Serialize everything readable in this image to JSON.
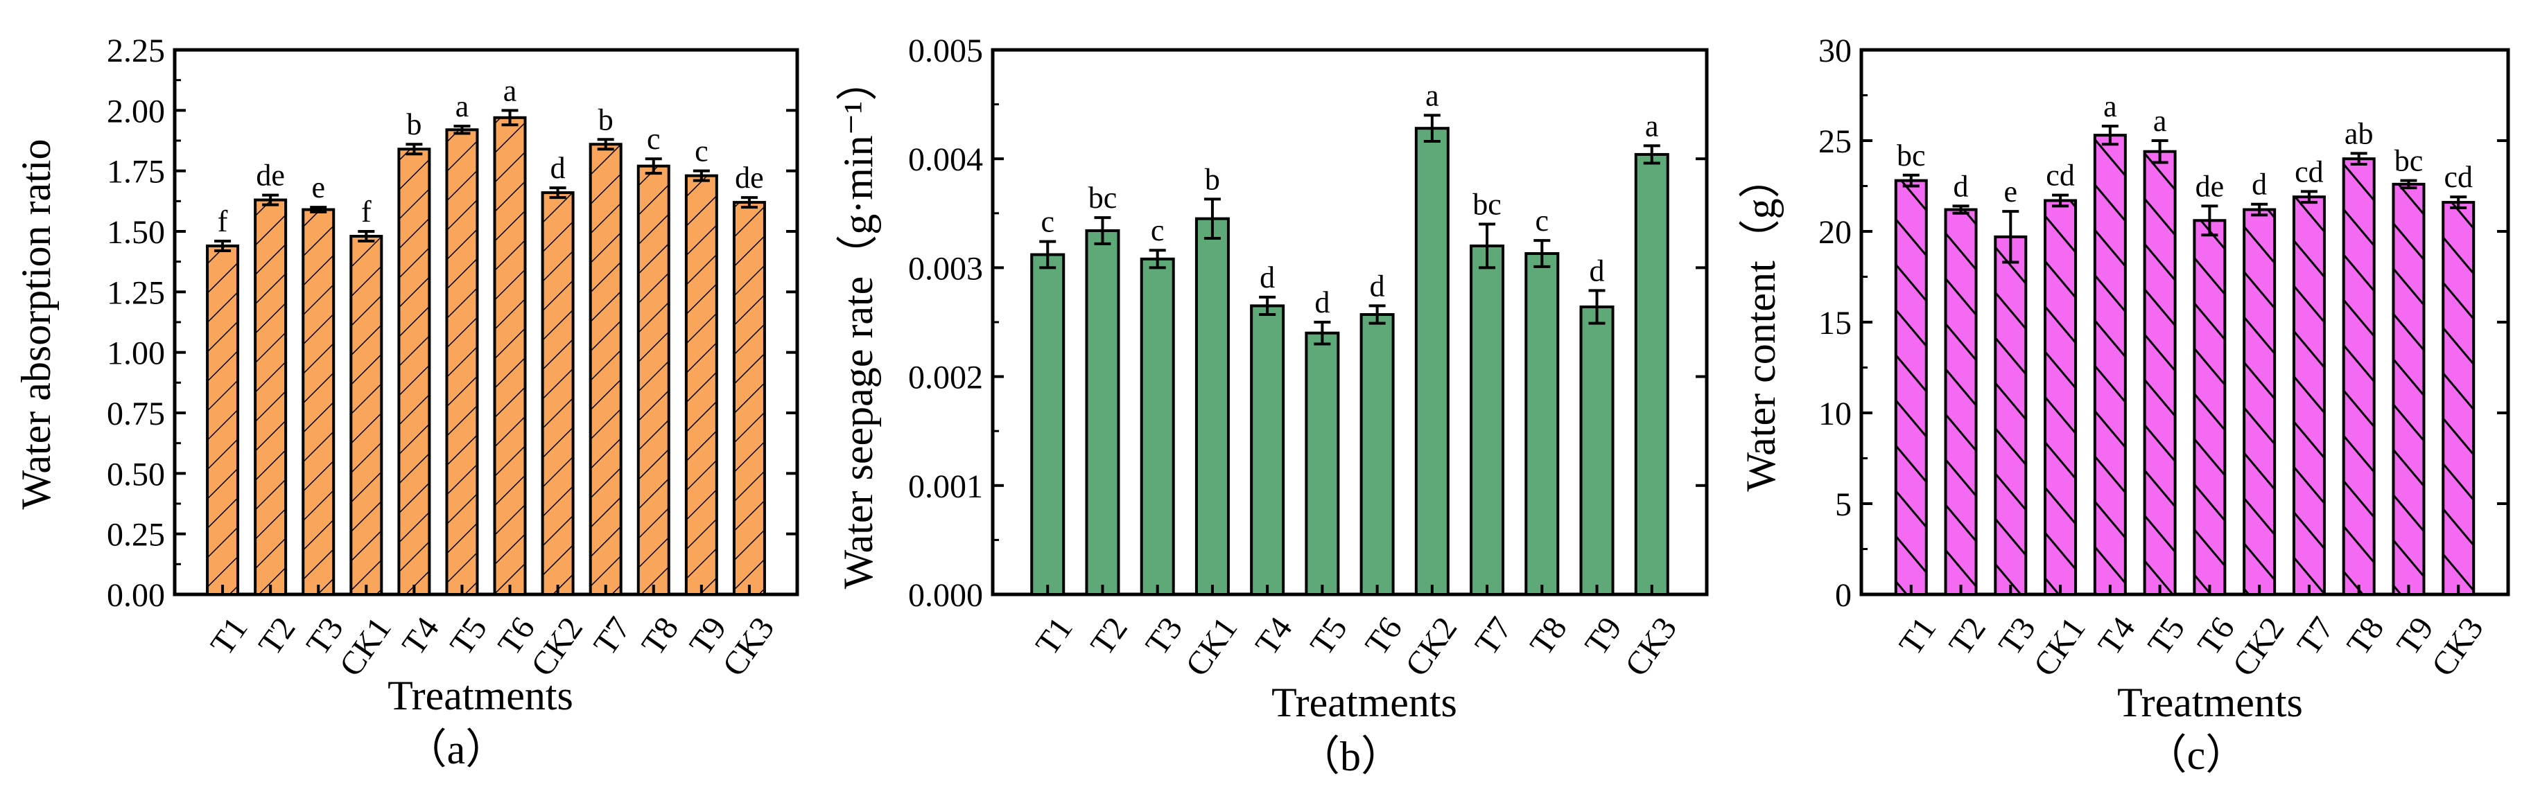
{
  "chart_data": [
    {
      "panel": "(a)",
      "type": "bar",
      "categories": [
        "T1",
        "T2",
        "T3",
        "CK1",
        "T4",
        "T5",
        "T6",
        "CK2",
        "T7",
        "T8",
        "T9",
        "CK3"
      ],
      "values": [
        1.44,
        1.63,
        1.59,
        1.48,
        1.84,
        1.92,
        1.97,
        1.66,
        1.86,
        1.77,
        1.73,
        1.62
      ],
      "errors": [
        0.02,
        0.02,
        0.01,
        0.02,
        0.02,
        0.015,
        0.03,
        0.02,
        0.02,
        0.03,
        0.02,
        0.02
      ],
      "letters": [
        "f",
        "de",
        "e",
        "f",
        "b",
        "a",
        "a",
        "d",
        "b",
        "c",
        "c",
        "de"
      ],
      "xlabel": "Treatments",
      "ylabel": "Water absorption ratio",
      "ylim": [
        0,
        2.25
      ],
      "yticks": [
        "0.00",
        "0.25",
        "0.50",
        "0.75",
        "1.00",
        "1.25",
        "1.50",
        "1.75",
        "2.00",
        "2.25"
      ],
      "fill": "#F9A55C",
      "hatch": "forward-diagonal",
      "caption": "（a）"
    },
    {
      "panel": "(b)",
      "type": "bar",
      "categories": [
        "T1",
        "T2",
        "T3",
        "CK1",
        "T4",
        "T5",
        "T6",
        "CK2",
        "T7",
        "T8",
        "T9",
        "CK3"
      ],
      "values": [
        0.00312,
        0.00334,
        0.00308,
        0.00345,
        0.00265,
        0.0024,
        0.00257,
        0.00428,
        0.0032,
        0.00313,
        0.00264,
        0.00404
      ],
      "errors": [
        0.00012,
        0.00012,
        8e-05,
        0.00018,
        8e-05,
        0.0001,
        8e-05,
        0.00012,
        0.0002,
        0.00012,
        0.00015,
        8e-05
      ],
      "letters": [
        "c",
        "bc",
        "c",
        "b",
        "d",
        "d",
        "d",
        "a",
        "bc",
        "c",
        "d",
        "a"
      ],
      "xlabel": "Treatments",
      "ylabel": "Water seepage rate（g·min⁻¹）",
      "ylim": [
        0,
        0.005
      ],
      "yticks": [
        "0.000",
        "0.001",
        "0.002",
        "0.003",
        "0.004",
        "0.005"
      ],
      "fill": "#5FA878",
      "hatch": "none",
      "caption": "（b）"
    },
    {
      "panel": "(c)",
      "type": "bar",
      "categories": [
        "T1",
        "T2",
        "T3",
        "CK1",
        "T4",
        "T5",
        "T6",
        "CK2",
        "T7",
        "T8",
        "T9",
        "CK3"
      ],
      "values": [
        22.8,
        21.2,
        19.7,
        21.7,
        25.3,
        24.4,
        20.6,
        21.2,
        21.9,
        24.0,
        22.6,
        21.6
      ],
      "errors": [
        0.3,
        0.2,
        1.4,
        0.3,
        0.5,
        0.6,
        0.8,
        0.3,
        0.3,
        0.3,
        0.2,
        0.3
      ],
      "letters": [
        "bc",
        "d",
        "e",
        "cd",
        "a",
        "a",
        "de",
        "d",
        "cd",
        "ab",
        "bc",
        "cd"
      ],
      "xlabel": "Treatments",
      "ylabel": "Water content（g）",
      "ylim": [
        0,
        30
      ],
      "yticks": [
        "0",
        "5",
        "10",
        "15",
        "20",
        "25",
        "30"
      ],
      "fill": "#F56AF2",
      "hatch": "back-diagonal",
      "caption": "（c）"
    }
  ]
}
